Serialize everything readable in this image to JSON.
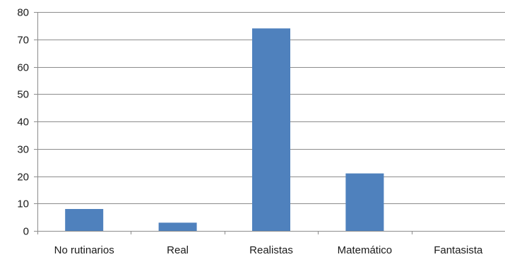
{
  "chart_data": {
    "type": "bar",
    "title": "",
    "xlabel": "",
    "ylabel": "",
    "categories": [
      "No rutinarios",
      "Real",
      "Realistas",
      "Matemático",
      "Fantasista"
    ],
    "values": [
      8,
      3,
      74,
      21,
      0
    ],
    "ylim": [
      0,
      80
    ],
    "yticks": [
      0,
      10,
      20,
      30,
      40,
      50,
      60,
      70,
      80
    ],
    "grid": true,
    "legend": "none",
    "bar_color": "#4f81bd"
  }
}
